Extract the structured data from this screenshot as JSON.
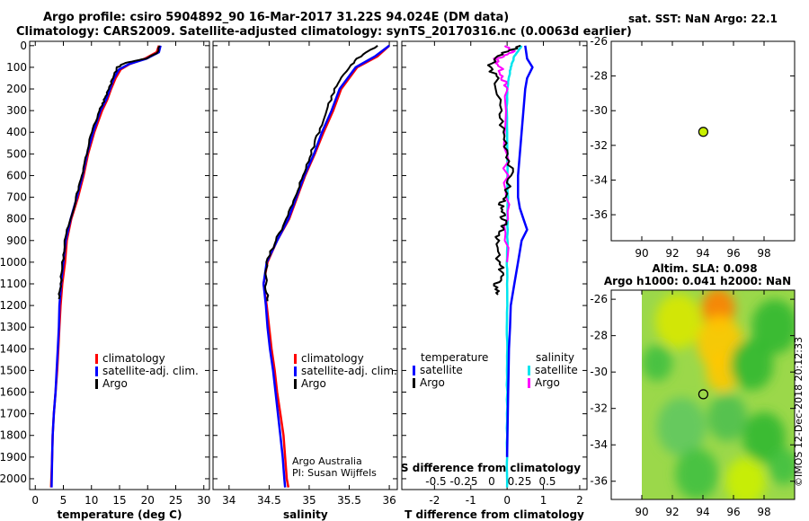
{
  "header": {
    "line1": "Argo profile: csiro 5904892_90 16-Mar-2017 31.22S 94.024E (DM data)",
    "line2": "Climatology: CARS2009. Satellite-adjusted climatology: synTS_20170316.nc (0.0063d earlier)"
  },
  "credit": {
    "line1": "Argo Australia",
    "line2": "PI: Susan Wijffels"
  },
  "imos_stamp": "©IMOS 12-Dec-2018 20:12:33",
  "colors": {
    "climatology": "#ff0000",
    "satellite": "#0000ff",
    "argo": "#000000",
    "sat_salinity": "#00e5ee",
    "argo_salinity": "#ff00ff",
    "argo_dot": "#c8f000"
  },
  "chart_data": [
    {
      "type": "line",
      "id": "temperature",
      "xlabel": "temperature (deg C)",
      "xlim": [
        -1,
        31
      ],
      "xticks": [
        0,
        5,
        10,
        15,
        20,
        25,
        30
      ],
      "xtick_labels": [
        "0",
        "5",
        "10",
        "15",
        "20",
        "25",
        "30"
      ],
      "ylim": [
        2050,
        -20
      ],
      "yticks": [
        0,
        100,
        200,
        300,
        400,
        500,
        600,
        700,
        800,
        900,
        1000,
        1100,
        1200,
        1300,
        1400,
        1500,
        1600,
        1700,
        1800,
        1900,
        2000
      ],
      "ytick_labels": [
        "0",
        "100",
        "200",
        "300",
        "400",
        "500",
        "600",
        "700",
        "800",
        "900",
        "1000",
        "1100",
        "1200",
        "1300",
        "1400",
        "1500",
        "1600",
        "1700",
        "1800",
        "1900",
        "2000"
      ],
      "legend": [
        "climatology",
        "satellite-adj. clim.",
        "Argo"
      ],
      "series": [
        {
          "name": "climatology",
          "color": "#ff0000",
          "x": [
            22.0,
            21.6,
            19.5,
            16.8,
            15.2,
            14.3,
            13.5,
            12.8,
            11.9,
            10.5,
            9.4,
            8.6,
            7.6,
            6.4,
            5.6,
            5.3,
            4.8,
            4.5,
            4.3,
            4.1,
            3.9,
            3.6,
            3.3,
            3.1,
            3.0,
            2.8
          ],
          "y": [
            0,
            30,
            60,
            85,
            110,
            150,
            200,
            250,
            300,
            400,
            500,
            600,
            700,
            800,
            900,
            1000,
            1100,
            1200,
            1300,
            1400,
            1500,
            1600,
            1700,
            1800,
            1900,
            2040
          ]
        },
        {
          "name": "satellite-adj. clim.",
          "color": "#0000ff",
          "x": [
            22.3,
            22.0,
            19.8,
            16.7,
            14.9,
            14.0,
            13.3,
            12.6,
            11.6,
            10.3,
            9.2,
            8.4,
            7.4,
            6.3,
            5.4,
            5.0,
            4.6,
            4.3,
            4.2,
            4.0,
            3.8,
            3.6,
            3.3,
            3.1,
            3.0,
            2.9
          ],
          "y": [
            0,
            30,
            60,
            85,
            110,
            150,
            200,
            250,
            300,
            400,
            500,
            600,
            700,
            800,
            900,
            1000,
            1100,
            1200,
            1300,
            1400,
            1500,
            1600,
            1700,
            1800,
            1900,
            2040
          ]
        },
        {
          "name": "Argo",
          "color": "#000000",
          "x": [
            22.1,
            21.9,
            19.7,
            16.0,
            14.6,
            13.8,
            13.1,
            12.3,
            11.4,
            10.1,
            9.1,
            8.3,
            7.3,
            6.2,
            5.3,
            4.9,
            4.5,
            4.2
          ],
          "y": [
            0,
            30,
            60,
            80,
            100,
            150,
            200,
            250,
            300,
            400,
            500,
            600,
            700,
            800,
            900,
            1000,
            1100,
            1170
          ]
        }
      ]
    },
    {
      "type": "line",
      "id": "salinity",
      "xlabel": "salinity",
      "xlim": [
        33.8,
        36.1
      ],
      "xticks": [
        34,
        34.5,
        35,
        35.5,
        36
      ],
      "xtick_labels": [
        "34",
        "34.5",
        "35",
        "35.5",
        "36"
      ],
      "ylim": [
        2050,
        -20
      ],
      "legend": [
        "climatology",
        "satellite-adj. clim.",
        "Argo"
      ],
      "series": [
        {
          "name": "climatology",
          "color": "#ff0000",
          "x": [
            36.0,
            35.85,
            35.6,
            35.4,
            35.3,
            35.18,
            35.07,
            34.95,
            34.85,
            34.75,
            34.6,
            34.48,
            34.43,
            34.47,
            34.5,
            34.53,
            34.57,
            34.6,
            34.64,
            34.68,
            34.7,
            34.72,
            34.74
          ],
          "y": [
            0,
            50,
            100,
            200,
            300,
            400,
            500,
            600,
            700,
            800,
            900,
            1000,
            1100,
            1200,
            1300,
            1400,
            1500,
            1600,
            1700,
            1800,
            1900,
            2000,
            2040
          ]
        },
        {
          "name": "satellite-adj. clim.",
          "color": "#0000ff",
          "x": [
            36.0,
            35.82,
            35.58,
            35.38,
            35.28,
            35.16,
            35.06,
            34.94,
            34.84,
            34.74,
            34.6,
            34.47,
            34.43,
            34.46,
            34.48,
            34.51,
            34.55,
            34.58,
            34.61,
            34.64,
            34.67,
            34.69,
            34.7
          ],
          "y": [
            0,
            50,
            100,
            200,
            300,
            400,
            500,
            600,
            700,
            800,
            900,
            1000,
            1100,
            1200,
            1300,
            1400,
            1500,
            1600,
            1700,
            1800,
            1900,
            2000,
            2040
          ]
        },
        {
          "name": "Argo",
          "color": "#000000",
          "x": [
            35.85,
            35.6,
            35.45,
            35.32,
            35.22,
            35.12,
            35.02,
            34.92,
            34.82,
            34.72,
            34.58,
            34.47,
            34.46,
            34.48
          ],
          "y": [
            0,
            60,
            120,
            200,
            300,
            400,
            500,
            600,
            700,
            800,
            900,
            1000,
            1100,
            1180
          ]
        }
      ]
    },
    {
      "type": "line",
      "id": "difference",
      "xlabel": "T difference from climatology",
      "xlabel_top": "S difference from climatology",
      "xlim": [
        -2.9,
        2.2
      ],
      "xticks": [
        -2,
        -1,
        0,
        1,
        2
      ],
      "xtick_labels": [
        "-2",
        "-1",
        "0",
        "1",
        "2"
      ],
      "top_ticks": [
        -0.5,
        -0.25,
        0,
        0.25,
        0.5
      ],
      "top_tick_labels": [
        "-0.5",
        "-0.25",
        "0",
        "0.25",
        "0.5"
      ],
      "ylim": [
        2050,
        -20
      ],
      "legend_left_title": "temperature",
      "legend_right_title": "salinity",
      "legend_left": [
        "satellite",
        "Argo"
      ],
      "legend_right": [
        "satellite",
        "Argo"
      ],
      "series": [
        {
          "name": "temperature satellite",
          "color": "#0000ff",
          "x": [
            0.5,
            0.55,
            0.7,
            0.55,
            0.5,
            0.45,
            0.4,
            0.35,
            0.3,
            0.3,
            0.3,
            0.35,
            0.45,
            0.55,
            0.4,
            0.3,
            0.2,
            0.1,
            0.08,
            0.05,
            0.04,
            0.03,
            0.02,
            0.01,
            0.0
          ],
          "y": [
            0,
            60,
            100,
            150,
            200,
            300,
            400,
            500,
            600,
            650,
            700,
            750,
            800,
            850,
            900,
            1000,
            1100,
            1200,
            1300,
            1400,
            1500,
            1600,
            1700,
            1800,
            1900
          ]
        },
        {
          "name": "temperature Argo",
          "color": "#000000",
          "x": [
            0.4,
            -0.2,
            -0.5,
            -0.3,
            -0.2,
            -0.1,
            0.05,
            0.1,
            -0.05,
            -0.2,
            -0.1,
            -0.1,
            -0.3,
            -0.25,
            -0.1,
            -0.3,
            -0.25
          ],
          "y": [
            0,
            40,
            90,
            150,
            300,
            400,
            500,
            600,
            700,
            750,
            800,
            850,
            900,
            1000,
            1050,
            1100,
            1150
          ]
        },
        {
          "name": "salinity satellite",
          "color": "#00e5ee",
          "x": [
            0.4,
            0.2,
            0.1,
            0.05,
            0.0,
            -0.01,
            0.0,
            0.02,
            0.01,
            0.01,
            0.0,
            0.0,
            0.0,
            0.0,
            0.0,
            0.0,
            0.0
          ],
          "y": [
            0,
            50,
            100,
            150,
            200,
            300,
            500,
            700,
            800,
            900,
            1000,
            1100,
            1300,
            1500,
            1700,
            1900,
            2040
          ]
        },
        {
          "name": "salinity Argo",
          "color": "#ff00ff",
          "x": [
            -0.1,
            0.2,
            -0.3,
            -0.2,
            -0.1,
            -0.05,
            -0.05,
            -0.02,
            0.0,
            0.0
          ],
          "y": [
            0,
            30,
            60,
            100,
            150,
            200,
            400,
            600,
            800,
            1000
          ]
        }
      ]
    },
    {
      "type": "scatter",
      "id": "sst_map",
      "title": "sat. SST: NaN Argo: 22.1",
      "xlim": [
        88,
        100
      ],
      "ylim": [
        -37.5,
        -26
      ],
      "xticks": [
        90,
        92,
        94,
        96,
        98
      ],
      "yticks": [
        -26,
        -28,
        -30,
        -32,
        -34,
        -36
      ],
      "ytick_labels": [
        "-26",
        "-28",
        "-30",
        "-32",
        "-34",
        "-36"
      ],
      "points": [
        {
          "x": 94.024,
          "y": -31.22,
          "label": "Argo"
        }
      ]
    },
    {
      "type": "heatmap",
      "id": "sla_map",
      "title_line1": "Altim. SLA: 0.098",
      "title_line2": "Argo h1000: 0.041 h2000: NaN",
      "xlim": [
        88,
        100
      ],
      "ylim": [
        -37,
        -25.5
      ],
      "xticks": [
        90,
        92,
        94,
        96,
        98
      ],
      "yticks": [
        -26,
        -28,
        -30,
        -32,
        -34,
        -36
      ],
      "ytick_labels": [
        "-26",
        "-28",
        "-30",
        "-32",
        "-34",
        "-36"
      ],
      "data_extent_x": [
        90,
        100
      ],
      "points": [
        {
          "x": 94.024,
          "y": -31.22,
          "label": "Argo"
        }
      ],
      "blobs": [
        {
          "x": 95.0,
          "y": -26.5,
          "r": 1.1,
          "color": "#ff8000"
        },
        {
          "x": 95.1,
          "y": -28.4,
          "r": 1.5,
          "color": "#ffc800"
        },
        {
          "x": 95.3,
          "y": -30.0,
          "r": 1.1,
          "color": "#ffc800"
        },
        {
          "x": 92.4,
          "y": -27.2,
          "r": 1.5,
          "color": "#d8e800"
        },
        {
          "x": 97.2,
          "y": -29.6,
          "r": 1.4,
          "color": "#30b830"
        },
        {
          "x": 98.7,
          "y": -27.5,
          "r": 1.5,
          "color": "#30b830"
        },
        {
          "x": 91.0,
          "y": -29.5,
          "r": 1.0,
          "color": "#40c040"
        },
        {
          "x": 92.6,
          "y": -33.0,
          "r": 1.6,
          "color": "#60c860"
        },
        {
          "x": 95.6,
          "y": -32.5,
          "r": 1.3,
          "color": "#50c050"
        },
        {
          "x": 98.0,
          "y": -33.6,
          "r": 1.4,
          "color": "#30b830"
        },
        {
          "x": 93.6,
          "y": -35.6,
          "r": 1.4,
          "color": "#40c040"
        },
        {
          "x": 96.8,
          "y": -36.0,
          "r": 1.3,
          "color": "#ccf000"
        },
        {
          "x": 99.3,
          "y": -35.2,
          "r": 1.0,
          "color": "#40c040"
        }
      ]
    }
  ]
}
